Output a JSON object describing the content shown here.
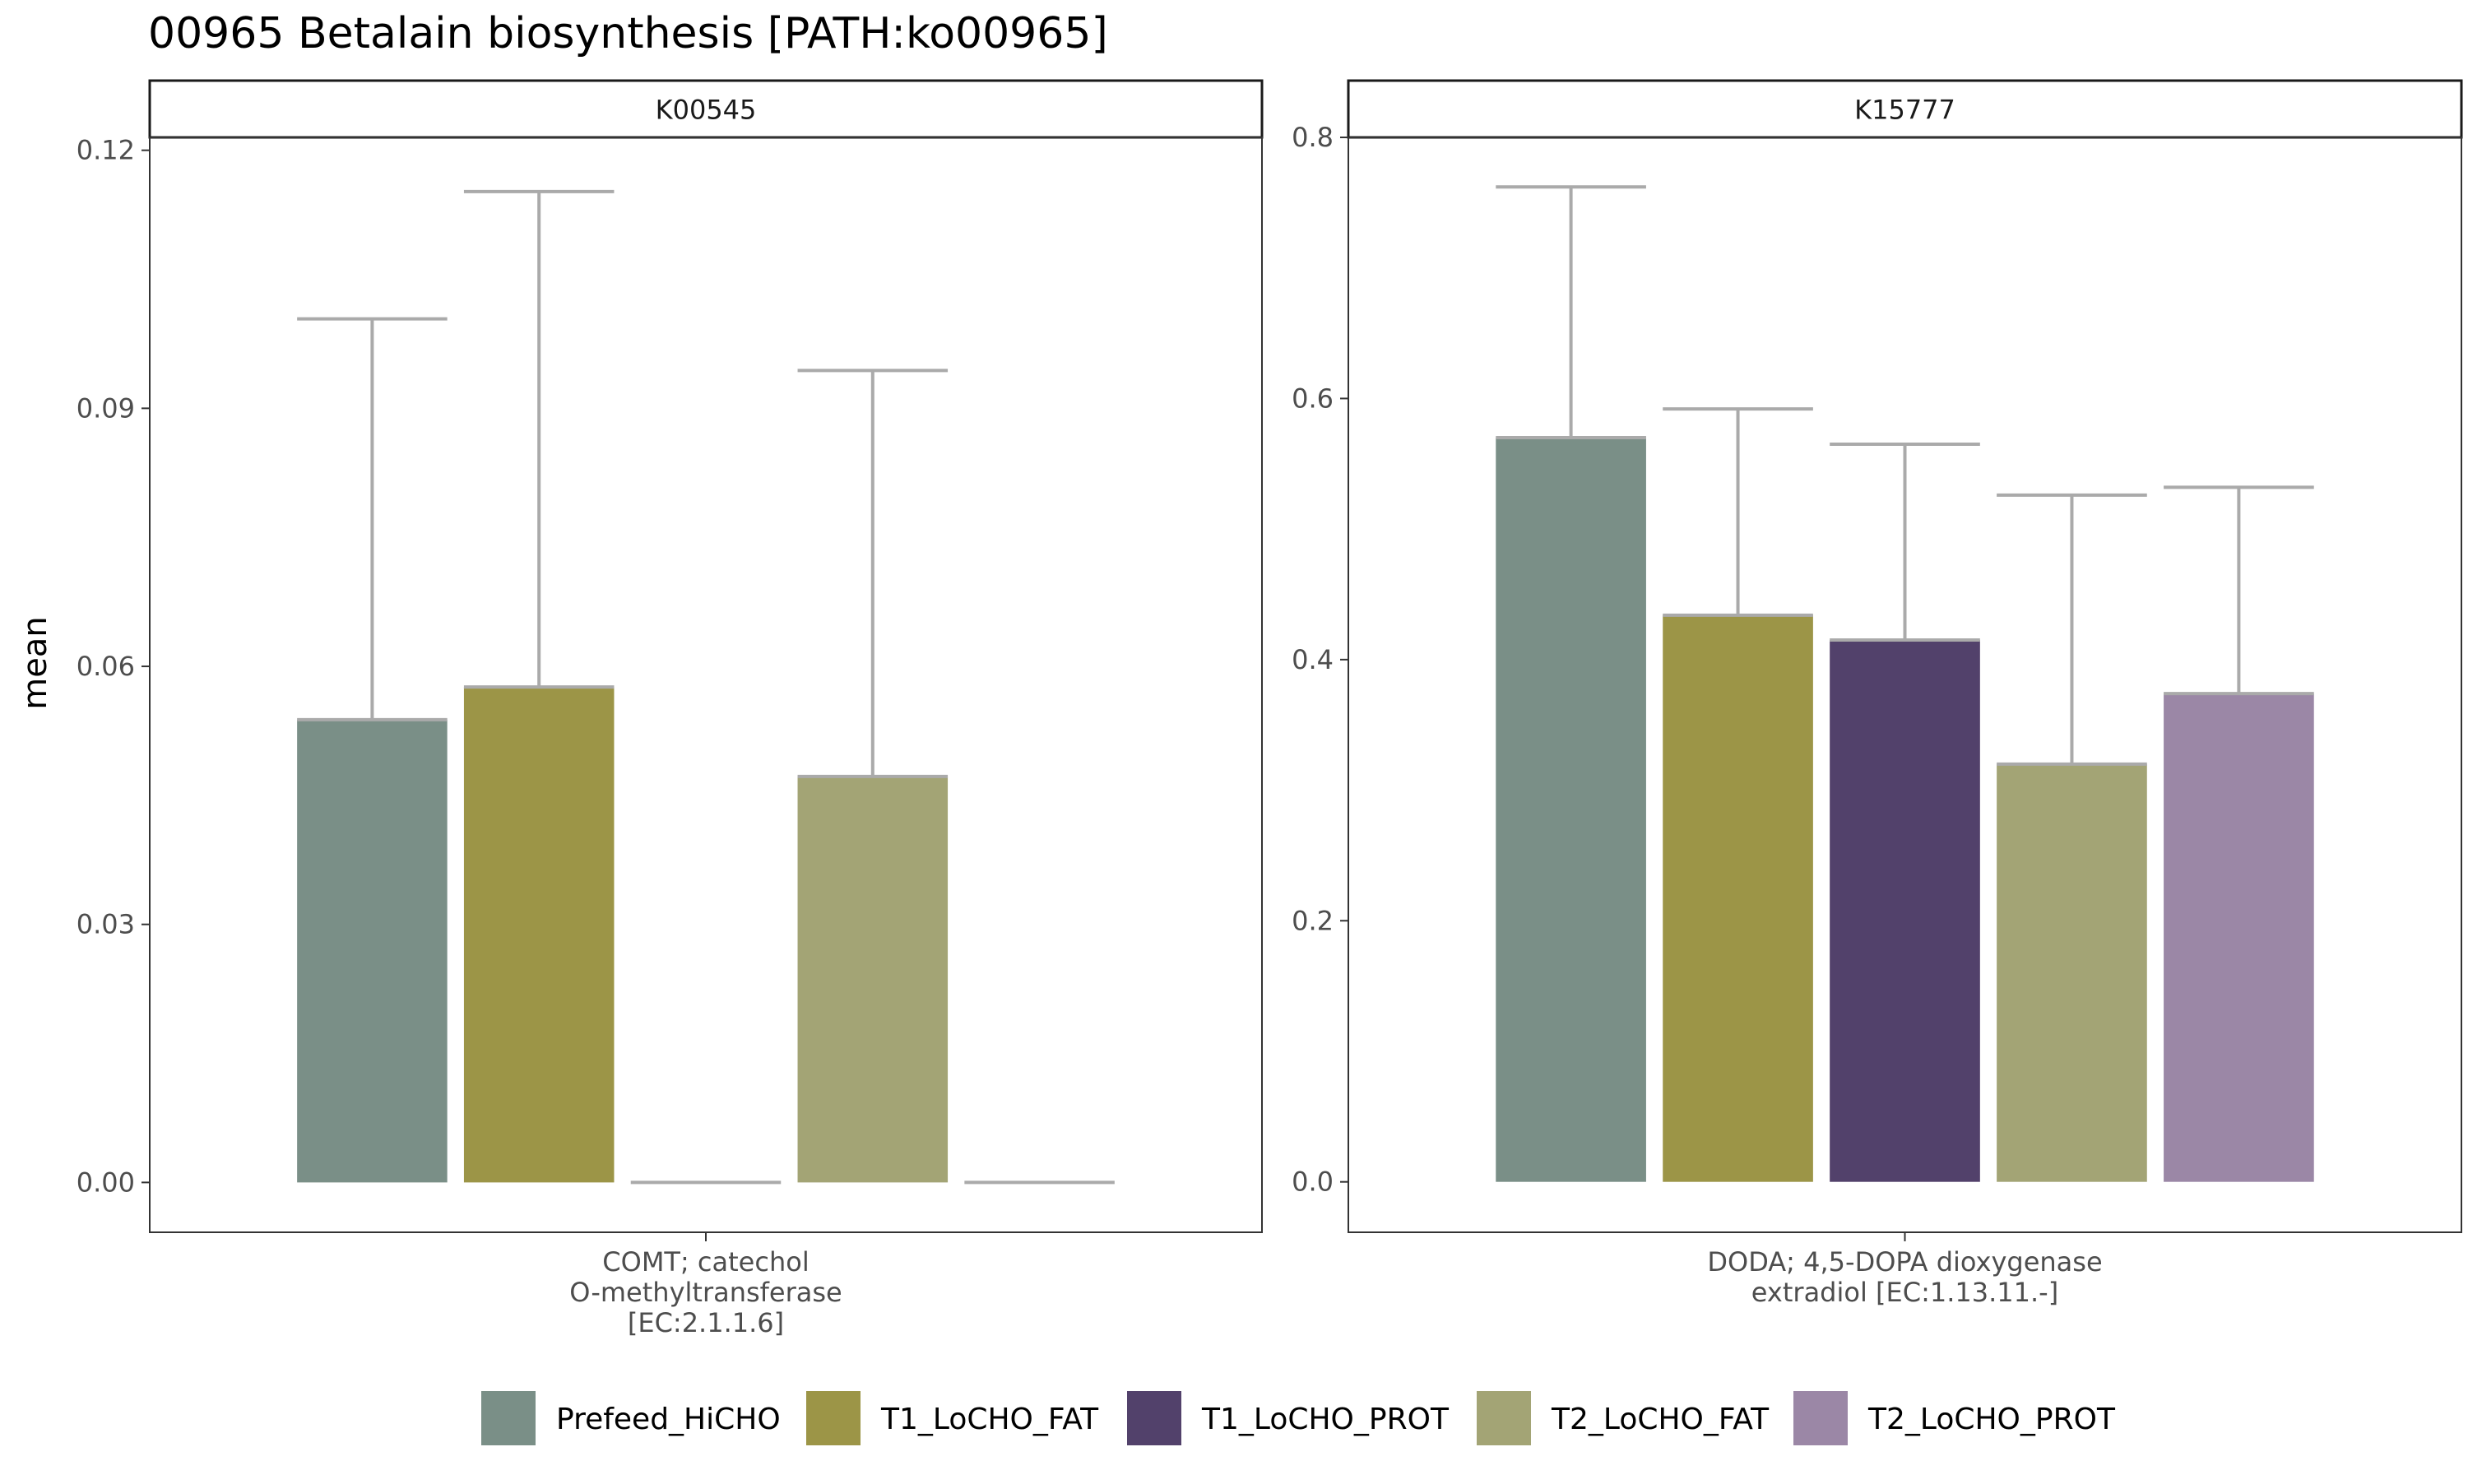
{
  "chart_data": {
    "type": "bar",
    "title": "00965 Betalain biosynthesis [PATH:ko00965]",
    "ylabel": "mean",
    "legend_position": "bottom",
    "grid": false,
    "legend": [
      {
        "name": "Prefeed_HiCHO",
        "color": "#7A8F87"
      },
      {
        "name": "T1_LoCHO_FAT",
        "color": "#9C9547"
      },
      {
        "name": "T1_LoCHO_PROT",
        "color": "#52416B"
      },
      {
        "name": "T2_LoCHO_FAT",
        "color": "#A3A475"
      },
      {
        "name": "T2_LoCHO_PROT",
        "color": "#9B87A6"
      }
    ],
    "errorbar_color": "#AAAAAA",
    "panels": [
      {
        "strip": "K00545",
        "category_lines": [
          "COMT; catechol",
          "O-methyltransferase",
          "[EC:2.1.1.6]"
        ],
        "ylim": [
          -0.0057,
          0.1215
        ],
        "yticks": [
          0,
          0.03,
          0.06,
          0.09,
          0.12
        ],
        "ytick_labels": [
          "0.00",
          "0.03",
          "0.06",
          "0.09",
          "0.12"
        ],
        "bars": [
          {
            "group": "Prefeed_HiCHO",
            "mean": 0.0538,
            "err_upper": 0.1004
          },
          {
            "group": "T1_LoCHO_FAT",
            "mean": 0.0576,
            "err_upper": 0.1152
          },
          {
            "group": "T1_LoCHO_PROT",
            "mean": 0.0,
            "err_upper": 0.0
          },
          {
            "group": "T2_LoCHO_FAT",
            "mean": 0.0472,
            "err_upper": 0.0944
          },
          {
            "group": "T2_LoCHO_PROT",
            "mean": 0.0,
            "err_upper": 0.0
          }
        ]
      },
      {
        "strip": "K15777",
        "category_lines": [
          "DODA; 4,5-DOPA dioxygenase",
          "extradiol [EC:1.13.11.-]"
        ],
        "ylim": [
          -0.038,
          0.8
        ],
        "yticks": [
          0,
          0.2,
          0.4,
          0.6,
          0.8
        ],
        "ytick_labels": [
          "0.0",
          "0.2",
          "0.4",
          "0.6",
          "0.8"
        ],
        "bars": [
          {
            "group": "Prefeed_HiCHO",
            "mean": 0.57,
            "err_upper": 0.762
          },
          {
            "group": "T1_LoCHO_FAT",
            "mean": 0.434,
            "err_upper": 0.592
          },
          {
            "group": "T1_LoCHO_PROT",
            "mean": 0.415,
            "err_upper": 0.565
          },
          {
            "group": "T2_LoCHO_FAT",
            "mean": 0.32,
            "err_upper": 0.526
          },
          {
            "group": "T2_LoCHO_PROT",
            "mean": 0.374,
            "err_upper": 0.532
          }
        ]
      }
    ]
  }
}
